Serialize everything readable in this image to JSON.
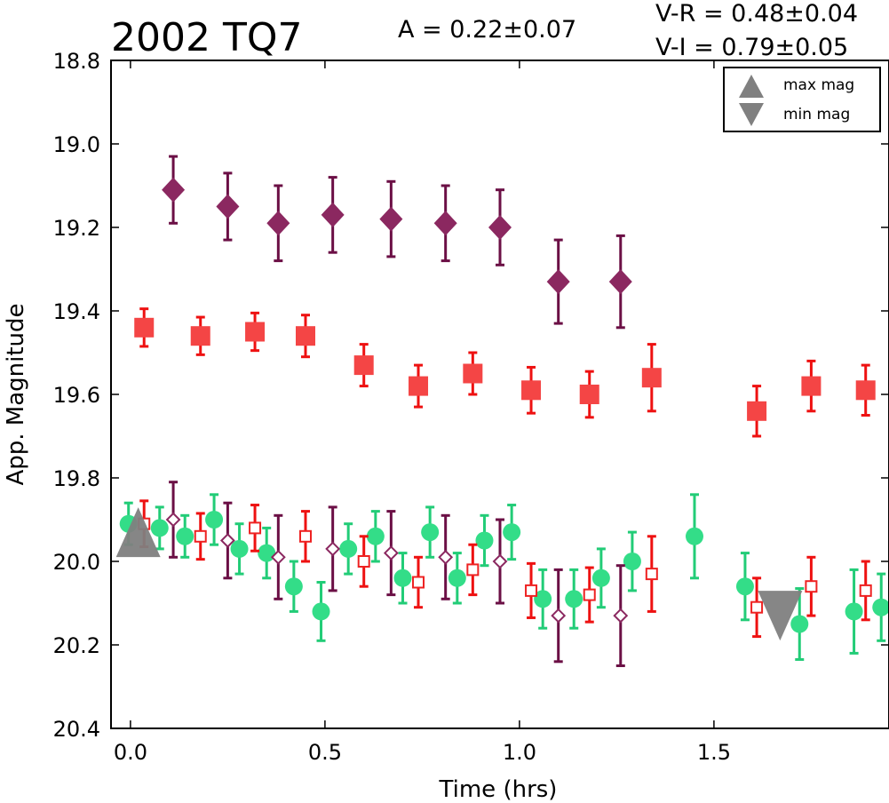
{
  "chart_data": {
    "type": "scatter",
    "title": "2002 TQ7",
    "annotations": {
      "amplitude": "A  = 0.22±0.07",
      "v_r": "V-R = 0.48±0.04",
      "v_i": "V-I  = 0.79±0.05"
    },
    "xlabel": "Time (hrs)",
    "ylabel": "App. Magnitude",
    "xlim": [
      -0.05,
      1.95
    ],
    "ylim": [
      18.8,
      20.4
    ],
    "y_inverted": true,
    "x_ticks": [
      "0.0",
      "0.5",
      "1.0",
      "1.5"
    ],
    "x_tick_values": [
      0,
      0.5,
      1.0,
      1.5
    ],
    "y_ticks": [
      "18.8",
      "19.0",
      "19.2",
      "19.4",
      "19.6",
      "19.8",
      "20.0",
      "20.2",
      "20.4"
    ],
    "y_tick_values": [
      18.8,
      19.0,
      19.2,
      19.4,
      19.6,
      19.8,
      20.0,
      20.2,
      20.4
    ],
    "legend": {
      "position": "top-right",
      "entries": [
        {
          "label": "max mag",
          "marker": "triangle-up",
          "color": "#808080"
        },
        {
          "label": "min mag",
          "marker": "triangle-down",
          "color": "#808080"
        }
      ]
    },
    "series": [
      {
        "marker": "diamond",
        "filled": true,
        "color": "#8b2860",
        "errcolor": "#6b0f45",
        "points": [
          {
            "x": 0.11,
            "y": 19.11,
            "err": 0.08
          },
          {
            "x": 0.25,
            "y": 19.15,
            "err": 0.08
          },
          {
            "x": 0.38,
            "y": 19.19,
            "err": 0.09
          },
          {
            "x": 0.52,
            "y": 19.17,
            "err": 0.09
          },
          {
            "x": 0.67,
            "y": 19.18,
            "err": 0.09
          },
          {
            "x": 0.81,
            "y": 19.19,
            "err": 0.09
          },
          {
            "x": 0.95,
            "y": 19.2,
            "err": 0.09
          },
          {
            "x": 1.1,
            "y": 19.33,
            "err": 0.1
          },
          {
            "x": 1.26,
            "y": 19.33,
            "err": 0.11
          }
        ]
      },
      {
        "marker": "square",
        "filled": true,
        "color": "#f44545",
        "errcolor": "#ee1111",
        "points": [
          {
            "x": 0.035,
            "y": 19.44,
            "err": 0.045
          },
          {
            "x": 0.18,
            "y": 19.46,
            "err": 0.045
          },
          {
            "x": 0.32,
            "y": 19.45,
            "err": 0.045
          },
          {
            "x": 0.45,
            "y": 19.46,
            "err": 0.05
          },
          {
            "x": 0.6,
            "y": 19.53,
            "err": 0.05
          },
          {
            "x": 0.74,
            "y": 19.58,
            "err": 0.05
          },
          {
            "x": 0.88,
            "y": 19.55,
            "err": 0.05
          },
          {
            "x": 1.03,
            "y": 19.59,
            "err": 0.055
          },
          {
            "x": 1.18,
            "y": 19.6,
            "err": 0.055
          },
          {
            "x": 1.34,
            "y": 19.56,
            "err": 0.08
          },
          {
            "x": 1.61,
            "y": 19.64,
            "err": 0.06
          },
          {
            "x": 1.75,
            "y": 19.58,
            "err": 0.06
          },
          {
            "x": 1.89,
            "y": 19.59,
            "err": 0.06
          }
        ]
      },
      {
        "marker": "circle",
        "filled": true,
        "color": "#33dd88",
        "errcolor": "#22cc77",
        "points": [
          {
            "x": -0.005,
            "y": 19.91,
            "err": 0.05
          },
          {
            "x": 0.075,
            "y": 19.92,
            "err": 0.05
          },
          {
            "x": 0.14,
            "y": 19.94,
            "err": 0.05
          },
          {
            "x": 0.215,
            "y": 19.9,
            "err": 0.06
          },
          {
            "x": 0.28,
            "y": 19.97,
            "err": 0.06
          },
          {
            "x": 0.35,
            "y": 19.98,
            "err": 0.06
          },
          {
            "x": 0.42,
            "y": 20.06,
            "err": 0.06
          },
          {
            "x": 0.49,
            "y": 20.12,
            "err": 0.07
          },
          {
            "x": 0.56,
            "y": 19.97,
            "err": 0.06
          },
          {
            "x": 0.63,
            "y": 19.94,
            "err": 0.06
          },
          {
            "x": 0.7,
            "y": 20.04,
            "err": 0.06
          },
          {
            "x": 0.77,
            "y": 19.93,
            "err": 0.06
          },
          {
            "x": 0.84,
            "y": 20.04,
            "err": 0.06
          },
          {
            "x": 0.91,
            "y": 19.95,
            "err": 0.06
          },
          {
            "x": 0.98,
            "y": 19.93,
            "err": 0.065
          },
          {
            "x": 1.06,
            "y": 20.09,
            "err": 0.07
          },
          {
            "x": 1.14,
            "y": 20.09,
            "err": 0.07
          },
          {
            "x": 1.21,
            "y": 20.04,
            "err": 0.07
          },
          {
            "x": 1.29,
            "y": 20.0,
            "err": 0.07
          },
          {
            "x": 1.45,
            "y": 19.94,
            "err": 0.1
          },
          {
            "x": 1.58,
            "y": 20.06,
            "err": 0.08
          },
          {
            "x": 1.72,
            "y": 20.15,
            "err": 0.085
          },
          {
            "x": 1.86,
            "y": 20.12,
            "err": 0.1
          },
          {
            "x": 1.93,
            "y": 20.11,
            "err": 0.08
          }
        ]
      },
      {
        "marker": "diamond",
        "filled": false,
        "color": "#8b2860",
        "errcolor": "#6b0f45",
        "points": [
          {
            "x": 0.11,
            "y": 19.9,
            "err": 0.09
          },
          {
            "x": 0.25,
            "y": 19.95,
            "err": 0.09
          },
          {
            "x": 0.38,
            "y": 19.99,
            "err": 0.1
          },
          {
            "x": 0.52,
            "y": 19.97,
            "err": 0.1
          },
          {
            "x": 0.67,
            "y": 19.98,
            "err": 0.1
          },
          {
            "x": 0.81,
            "y": 19.99,
            "err": 0.1
          },
          {
            "x": 0.95,
            "y": 20.0,
            "err": 0.1
          },
          {
            "x": 1.1,
            "y": 20.13,
            "err": 0.11
          },
          {
            "x": 1.26,
            "y": 20.13,
            "err": 0.12
          }
        ]
      },
      {
        "marker": "square",
        "filled": false,
        "color": "#ee2222",
        "errcolor": "#ee1111",
        "points": [
          {
            "x": 0.035,
            "y": 19.91,
            "err": 0.055
          },
          {
            "x": 0.18,
            "y": 19.94,
            "err": 0.055
          },
          {
            "x": 0.32,
            "y": 19.92,
            "err": 0.055
          },
          {
            "x": 0.45,
            "y": 19.94,
            "err": 0.06
          },
          {
            "x": 0.6,
            "y": 20.0,
            "err": 0.06
          },
          {
            "x": 0.74,
            "y": 20.05,
            "err": 0.06
          },
          {
            "x": 0.88,
            "y": 20.02,
            "err": 0.06
          },
          {
            "x": 1.03,
            "y": 20.07,
            "err": 0.065
          },
          {
            "x": 1.18,
            "y": 20.08,
            "err": 0.065
          },
          {
            "x": 1.34,
            "y": 20.03,
            "err": 0.09
          },
          {
            "x": 1.61,
            "y": 20.11,
            "err": 0.07
          },
          {
            "x": 1.75,
            "y": 20.06,
            "err": 0.07
          },
          {
            "x": 1.89,
            "y": 20.07,
            "err": 0.07
          }
        ]
      }
    ],
    "extrema": [
      {
        "label": "max mag",
        "marker": "triangle-up",
        "x": 0.02,
        "y": 19.93,
        "color": "#808080"
      },
      {
        "label": "min mag",
        "marker": "triangle-down",
        "x": 1.67,
        "y": 20.13,
        "color": "#808080"
      }
    ]
  }
}
